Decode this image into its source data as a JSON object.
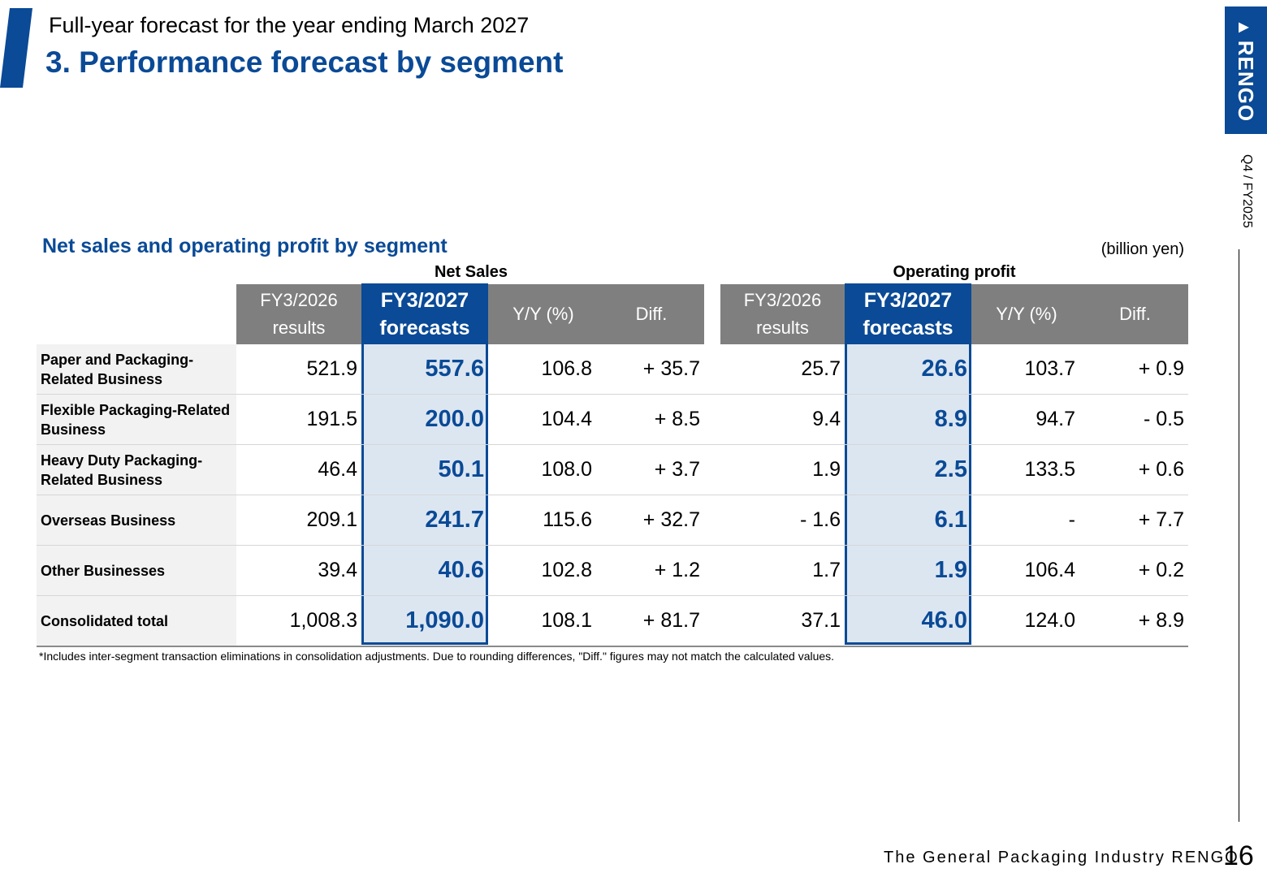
{
  "header": {
    "subtitle": "Full-year forecast for the year ending March 2027",
    "title": "3. Performance forecast by segment"
  },
  "branding": {
    "logo_text": "RENGO",
    "period": "Q4 / FY2025",
    "footer": "The General Packaging Industry RENGO",
    "page_number": "16",
    "brand_color": "#0a4a96"
  },
  "table": {
    "title": "Net sales and operating profit by segment",
    "unit": "(billion yen)",
    "groups": [
      "Net Sales",
      "Operating profit"
    ],
    "columns": [
      "FY3/2026 results",
      "FY3/2027 forecasts",
      "Y/Y (%)",
      "Diff.",
      "FY3/2026 results",
      "FY3/2027 forecasts",
      "Y/Y (%)",
      "Diff."
    ],
    "rows": [
      {
        "label": "Paper and Packaging-Related Business",
        "values": [
          "521.9",
          "557.6",
          "106.8",
          "+ 35.7",
          "25.7",
          "26.6",
          "103.7",
          "+ 0.9"
        ]
      },
      {
        "label": "Flexible Packaging-Related Business",
        "values": [
          "191.5",
          "200.0",
          "104.4",
          "+ 8.5",
          "9.4",
          "8.9",
          "94.7",
          "- 0.5"
        ]
      },
      {
        "label": "Heavy Duty Packaging-Related Business",
        "values": [
          "46.4",
          "50.1",
          "108.0",
          "+ 3.7",
          "1.9",
          "2.5",
          "133.5",
          "+ 0.6"
        ]
      },
      {
        "label": "Overseas Business",
        "values": [
          "209.1",
          "241.7",
          "115.6",
          "+ 32.7",
          "- 1.6",
          "6.1",
          "-",
          "+ 7.7"
        ]
      },
      {
        "label": "Other Businesses",
        "values": [
          "39.4",
          "40.6",
          "102.8",
          "+ 1.2",
          "1.7",
          "1.9",
          "106.4",
          "+ 0.2"
        ]
      },
      {
        "label": "Consolidated total",
        "values": [
          "1,008.3",
          "1,090.0",
          "108.1",
          "+ 81.7",
          "37.1",
          "46.0",
          "124.0",
          "+ 8.9"
        ]
      }
    ],
    "footnote": "*Includes inter-segment transaction eliminations in consolidation adjustments. Due to rounding differences, \"Diff.\" figures may not match the calculated values."
  }
}
